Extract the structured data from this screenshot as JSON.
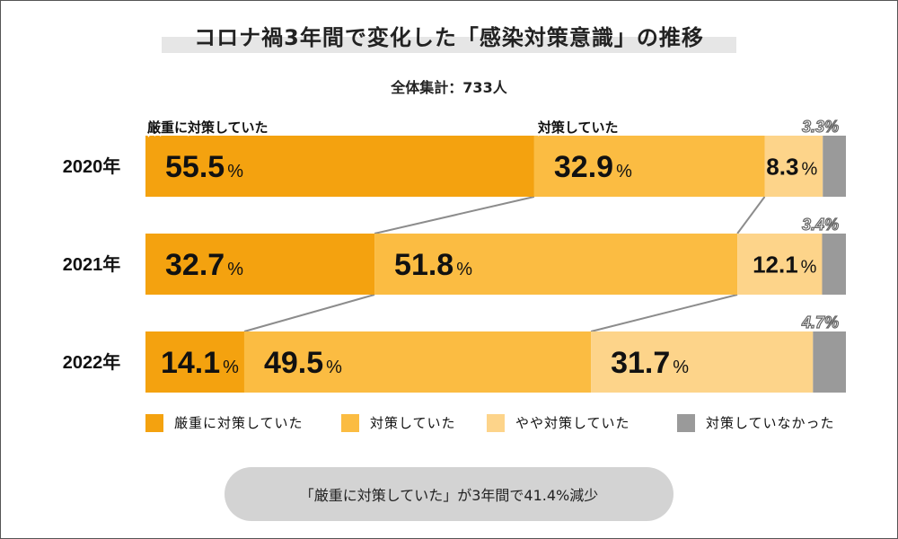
{
  "title": "コロナ禍3年間で変化した「感染対策意識」の推移",
  "subtitle": "全体集計：733人",
  "note": "「厳重に対策していた」が3年間で41.4%減少",
  "percent_sign": "%",
  "colors": {
    "strict": "#f4a20f",
    "some": "#fbbc42",
    "slight": "#fdd48a",
    "none": "#9a9a9a",
    "connector": "#8c8c8c"
  },
  "chart_data": {
    "type": "bar",
    "orientation": "horizontal",
    "stacked": true,
    "percent": true,
    "title": "コロナ禍3年間で変化した「感染対策意識」の推移",
    "subtitle": "全体集計：733人",
    "categories": [
      "2020年",
      "2021年",
      "2022年"
    ],
    "series": [
      {
        "name": "厳重に対策していた",
        "values": [
          55.5,
          32.7,
          14.1
        ]
      },
      {
        "name": "対策していた",
        "values": [
          32.9,
          51.8,
          49.5
        ]
      },
      {
        "name": "やや対策していた",
        "values": [
          8.3,
          12.1,
          31.7
        ]
      },
      {
        "name": "対策していなかった",
        "values": [
          3.3,
          3.4,
          4.7
        ]
      }
    ],
    "display_labels": [
      [
        "55.5",
        "32.9",
        "8.3",
        "3.3%"
      ],
      [
        "32.7",
        "51.8",
        "12.1",
        "3.4%"
      ],
      [
        "14.1",
        "49.5",
        "31.7",
        "4.7%"
      ]
    ],
    "category_labels_on_first_bar": [
      "厳重に対策していた",
      "対策していた"
    ],
    "legend_position": "bottom",
    "xlim": [
      0,
      100
    ]
  }
}
